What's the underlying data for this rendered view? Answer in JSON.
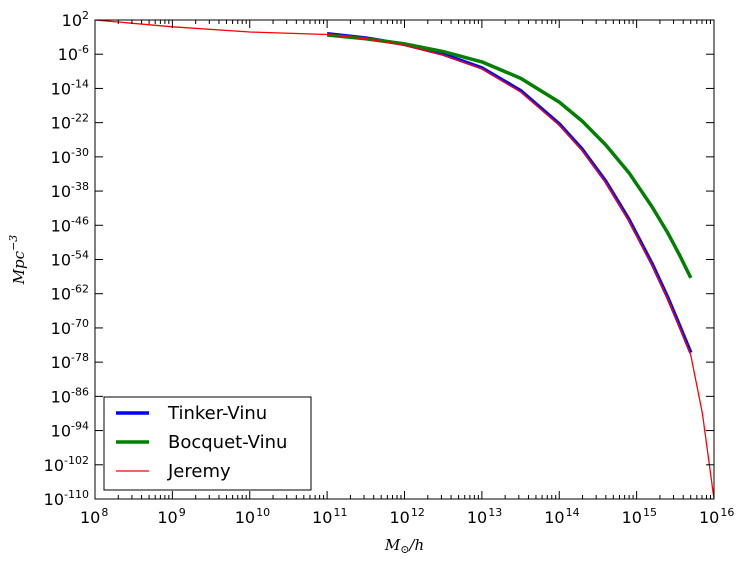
{
  "chart_data": {
    "type": "line",
    "xscale": "log",
    "yscale": "log",
    "xlabel": "M_⊙/h",
    "ylabel": "Mpc^{-3}",
    "xlim": [
      100000000.0,
      1e+16
    ],
    "ylim": [
      1e-110,
      100.0
    ],
    "x_tick_exponents": [
      "8",
      "9",
      "10",
      "11",
      "12",
      "13",
      "14",
      "15",
      "16"
    ],
    "y_tick_exponents": [
      "2",
      "-6",
      "-14",
      "-22",
      "-30",
      "-38",
      "-46",
      "-54",
      "-62",
      "-70",
      "-78",
      "-86",
      "-94",
      "-102",
      "-110"
    ],
    "tick_base": "10",
    "legend_position": "lower-left",
    "series": [
      {
        "name": "Tinker-Vinu",
        "color": "#0000ff",
        "x_log10": [
          11.0,
          11.5,
          12.0,
          12.5,
          13.0,
          13.5,
          14.0,
          14.3,
          14.6,
          14.9,
          15.2,
          15.4,
          15.55,
          15.7
        ],
        "y_log10": [
          -1.2,
          -2.2,
          -3.7,
          -6.0,
          -9.2,
          -14.5,
          -22.3,
          -28.3,
          -35.7,
          -44.6,
          -55.0,
          -62.8,
          -69.2,
          -75.8
        ]
      },
      {
        "name": "Bocquet-Vinu",
        "color": "#008000",
        "x_log10": [
          11.0,
          11.5,
          12.0,
          12.5,
          13.0,
          13.5,
          14.0,
          14.3,
          14.6,
          14.9,
          15.2,
          15.4,
          15.55,
          15.7
        ],
        "y_log10": [
          -1.5,
          -2.4,
          -3.6,
          -5.4,
          -7.8,
          -11.6,
          -17.2,
          -21.7,
          -27.2,
          -33.7,
          -41.7,
          -47.7,
          -52.8,
          -58.3
        ]
      },
      {
        "name": "Jeremy",
        "color": "#ff0000",
        "x_log10": [
          8.0,
          9.0,
          10.0,
          11.0,
          11.5,
          12.0,
          12.5,
          13.0,
          13.5,
          14.0,
          14.3,
          14.6,
          14.9,
          15.2,
          15.4,
          15.55,
          15.7,
          15.85,
          16.0
        ],
        "y_log10": [
          2.0,
          0.4,
          -0.8,
          -1.4,
          -2.4,
          -3.9,
          -6.2,
          -9.4,
          -14.8,
          -22.6,
          -28.6,
          -36.0,
          -45.0,
          -55.4,
          -63.2,
          -69.6,
          -76.4,
          -90.0,
          -110.0
        ]
      }
    ]
  }
}
